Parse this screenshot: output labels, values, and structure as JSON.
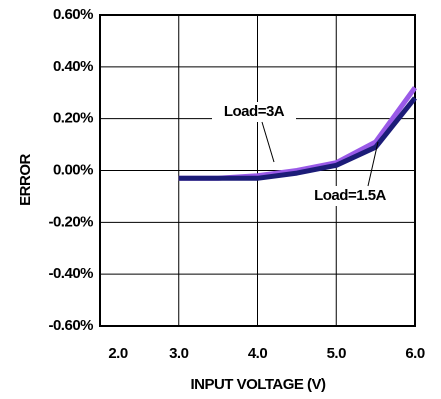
{
  "chart_data": {
    "type": "line",
    "x_label": "INPUT VOLTAGE (V)",
    "y_label": "ERROR",
    "x": [
      3.0,
      3.5,
      4.0,
      4.5,
      5.0,
      5.5,
      6.0
    ],
    "series": [
      {
        "name": "Load=3A",
        "color": "#9a5ae8",
        "values": [
          -0.03,
          -0.03,
          -0.02,
          0.0,
          0.03,
          0.11,
          0.32
        ]
      },
      {
        "name": "Load=1.5A",
        "color": "#1c1c78",
        "values": [
          -0.03,
          -0.03,
          -0.03,
          -0.01,
          0.02,
          0.09,
          0.28
        ]
      }
    ],
    "xlim": [
      2.0,
      6.0
    ],
    "xticks": [
      {
        "value": 2,
        "label": "2.0"
      },
      {
        "value": 3,
        "label": "3.0"
      },
      {
        "value": 4,
        "label": "4.0"
      },
      {
        "value": 5,
        "label": "5.0"
      },
      {
        "value": 6,
        "label": "6.0"
      }
    ],
    "ylim": [
      -0.6,
      0.6
    ],
    "yticks": [
      {
        "value": -0.6,
        "label": "-0.60%"
      },
      {
        "value": -0.4,
        "label": "-0.40%"
      },
      {
        "value": -0.2,
        "label": "-0.20%"
      },
      {
        "value": 0,
        "label": "0.00%"
      },
      {
        "value": 0.2,
        "label": "0.20%"
      },
      {
        "value": 0.4,
        "label": "0.40%"
      },
      {
        "value": 0.6,
        "label": "0.60%"
      }
    ],
    "grid": true
  }
}
